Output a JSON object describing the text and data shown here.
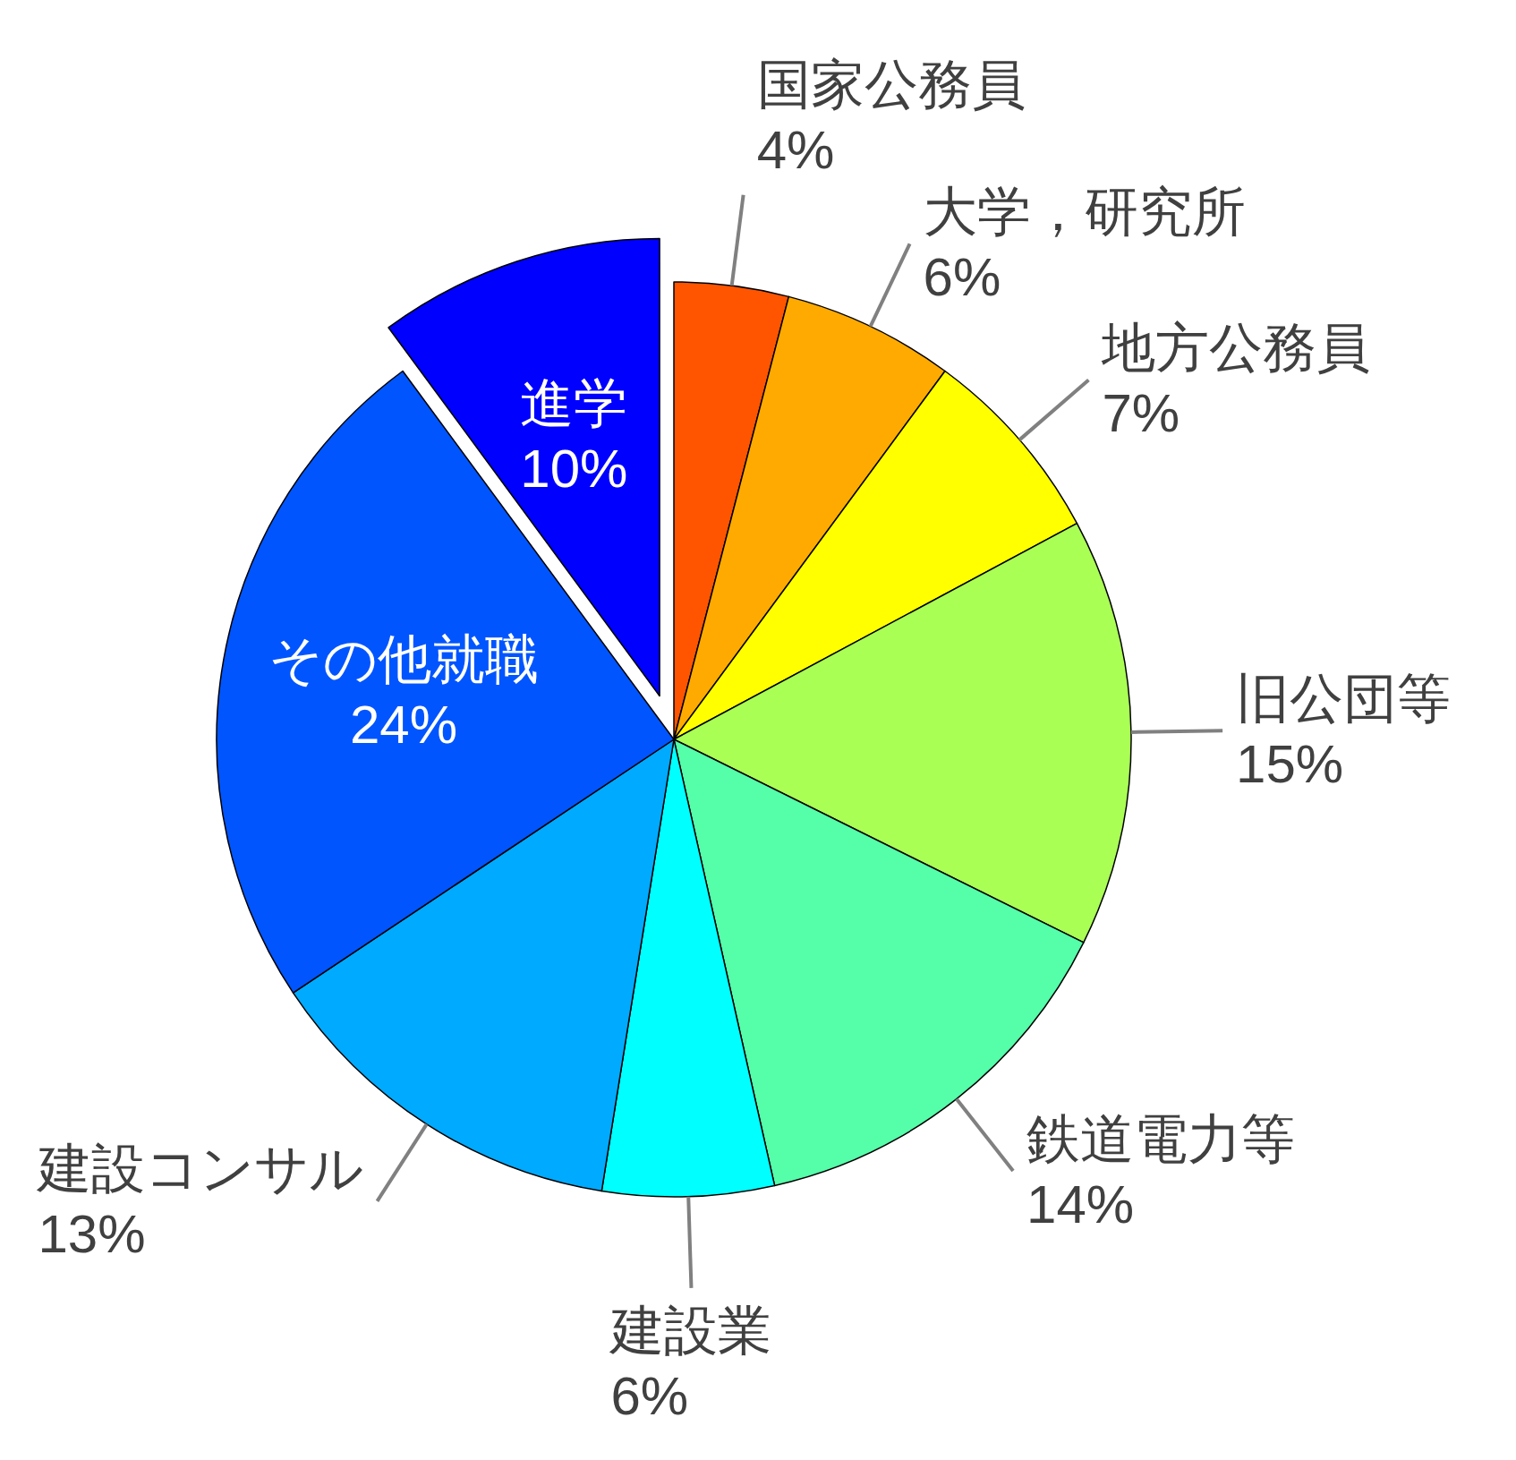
{
  "chart_data": {
    "type": "pie",
    "categories": [
      "国家公務員",
      "大学，研究所",
      "地方公務員",
      "旧公団等",
      "鉄道電力等",
      "建設業",
      "建設コンサル",
      "その他就職",
      "進学"
    ],
    "values": [
      4,
      6,
      7,
      15,
      14,
      6,
      13,
      24,
      10
    ],
    "colors": [
      "#ff5500",
      "#ffaa00",
      "#ffff00",
      "#aaff55",
      "#55ffaa",
      "#00ffff",
      "#00aaff",
      "#0055ff",
      "#0000ff"
    ],
    "value_labels": [
      "4%",
      "6%",
      "7%",
      "15%",
      "14%",
      "6%",
      "13%",
      "24%",
      "10%"
    ]
  }
}
